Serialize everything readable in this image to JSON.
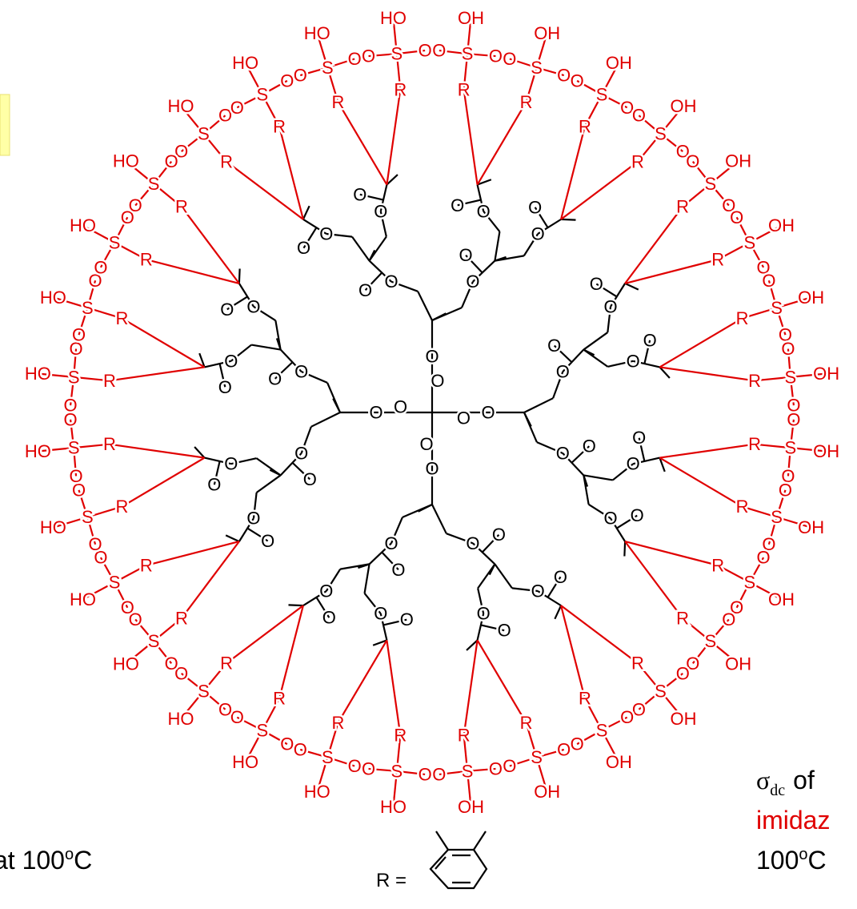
{
  "atoms": {
    "oxygen": "O",
    "sulfur": "S",
    "hydroxyl_left": "HO",
    "hydroxyl_right": "OH",
    "r_group": "R"
  },
  "r_definition": "R =",
  "left_caption": {
    "prefix": "at 100",
    "superscript": "o",
    "suffix": "C"
  },
  "right_caption": {
    "symbol": "σ",
    "subscript": "dc",
    "text": "of",
    "line2": "imidaz",
    "line3_prefix": "100",
    "line3_superscript": "o",
    "line3_suffix": "C"
  }
}
